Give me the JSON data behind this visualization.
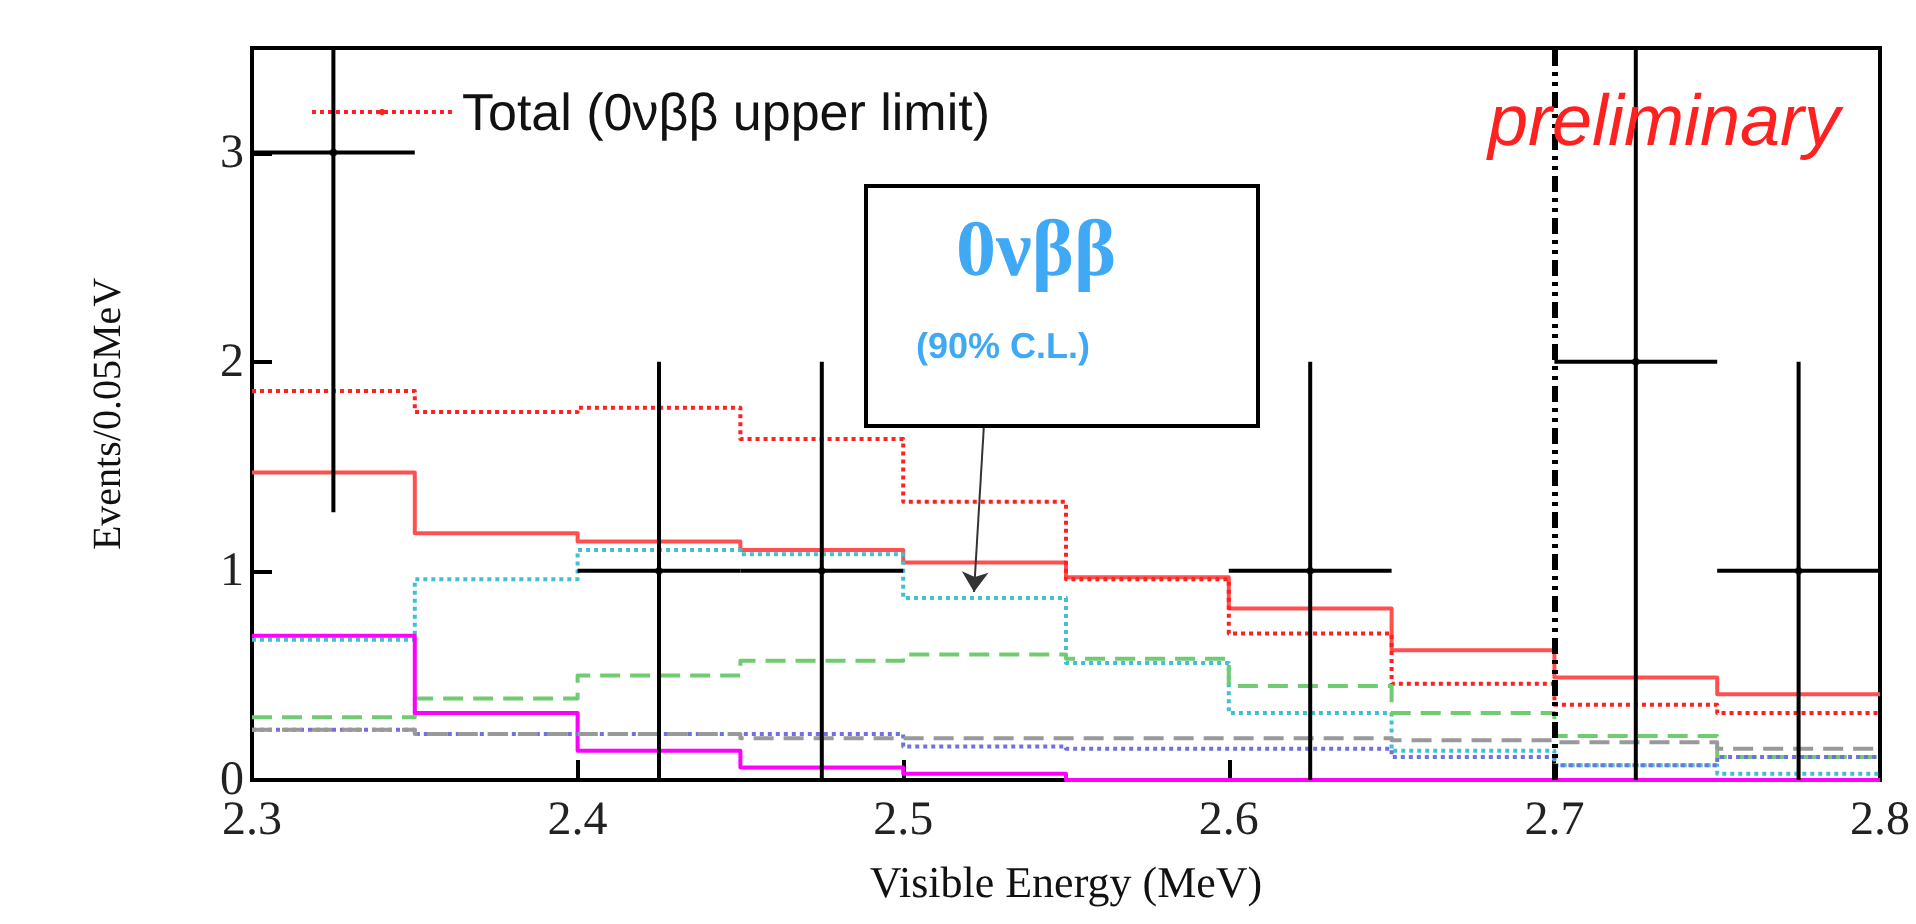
{
  "chart_data": {
    "type": "histogram",
    "xlabel": "Visible Energy (MeV)",
    "ylabel": "Events/0.05MeV",
    "bins": [
      2.3,
      2.35,
      2.4,
      2.45,
      2.5,
      2.55,
      2.6,
      2.65,
      2.7,
      2.75,
      2.8
    ],
    "xlim": [
      2.3,
      2.8
    ],
    "xticks": [
      2.3,
      2.4,
      2.5,
      2.6,
      2.7,
      2.8
    ],
    "ylim": [
      0,
      3.5
    ],
    "yticks": [
      0,
      1,
      2,
      3
    ],
    "grid": false,
    "legend": "top left",
    "series": [
      {
        "color": "#ff5050",
        "line_style": "solid",
        "values": [
          1.47,
          1.18,
          1.14,
          1.1,
          1.04,
          0.97,
          0.82,
          0.62,
          0.49,
          0.41
        ]
      },
      {
        "name": "Total (0νββ upper limit)",
        "color": "#ff2020",
        "line_style": "dotted",
        "values": [
          1.86,
          1.76,
          1.78,
          1.63,
          1.33,
          0.96,
          0.7,
          0.46,
          0.36,
          0.32
        ]
      },
      {
        "color": "#40c0d0",
        "line_style": "dotted",
        "values": [
          0.67,
          0.96,
          1.1,
          1.08,
          0.87,
          0.56,
          0.32,
          0.14,
          0.07,
          0.03
        ]
      },
      {
        "color": "#70cc70",
        "line_style": "dashed",
        "values": [
          0.3,
          0.39,
          0.5,
          0.57,
          0.6,
          0.58,
          0.45,
          0.32,
          0.21,
          0.11
        ]
      },
      {
        "color": "#ff00ff",
        "line_style": "solid",
        "values": [
          0.69,
          0.32,
          0.14,
          0.06,
          0.03,
          0,
          0,
          0,
          0,
          0
        ]
      },
      {
        "color": "#7070e0",
        "line_style": "dotted",
        "values": [
          0.24,
          0.22,
          0.22,
          0.22,
          0.16,
          0.15,
          0.15,
          0.11,
          0.07,
          0.11
        ]
      },
      {
        "color": "#999999",
        "line_style": "dashed",
        "values": [
          0.24,
          0.22,
          0.22,
          0.2,
          0.2,
          0.2,
          0.2,
          0.19,
          0.18,
          0.15
        ]
      },
      {
        "type": "scatter",
        "color": "#000000",
        "marker": "circle",
        "x": [
          2.325,
          2.425,
          2.475,
          2.625,
          2.725,
          2.775
        ],
        "values": [
          3,
          1,
          1,
          1,
          2,
          1
        ],
        "errors": [
          [
            1.28,
            3.5
          ],
          [
            0,
            2
          ],
          [
            0,
            2
          ],
          [
            0,
            2
          ],
          [
            0,
            3.5
          ],
          [
            0,
            2
          ]
        ],
        "xerrors": [
          0.025,
          0.025,
          0.025,
          0.025,
          0.025,
          0.025
        ]
      }
    ],
    "ref_lines": [
      {
        "axis": "x",
        "value": 2.7,
        "color": "#000000",
        "line_style": "dashed"
      }
    ],
    "annotations": [
      "0νββ",
      "(90% C.L.)",
      "preliminary"
    ]
  }
}
